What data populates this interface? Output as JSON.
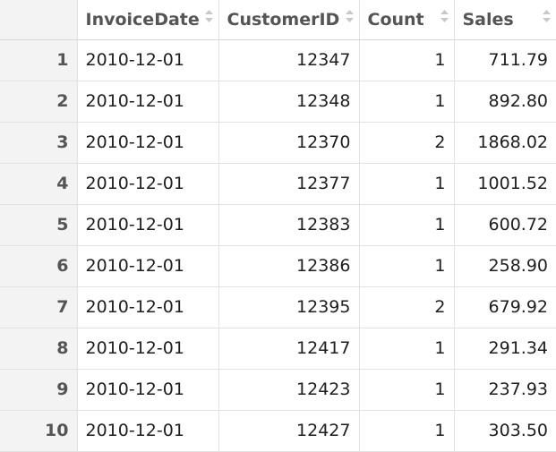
{
  "table": {
    "columns": [
      {
        "key": "index",
        "label": ""
      },
      {
        "key": "InvoiceDate",
        "label": "InvoiceDate"
      },
      {
        "key": "CustomerID",
        "label": "CustomerID"
      },
      {
        "key": "Count",
        "label": "Count"
      },
      {
        "key": "Sales",
        "label": "Sales"
      }
    ],
    "rows": [
      {
        "index": "1",
        "InvoiceDate": "2010-12-01",
        "CustomerID": "12347",
        "Count": "1",
        "Sales": "711.79"
      },
      {
        "index": "2",
        "InvoiceDate": "2010-12-01",
        "CustomerID": "12348",
        "Count": "1",
        "Sales": "892.80"
      },
      {
        "index": "3",
        "InvoiceDate": "2010-12-01",
        "CustomerID": "12370",
        "Count": "2",
        "Sales": "1868.02"
      },
      {
        "index": "4",
        "InvoiceDate": "2010-12-01",
        "CustomerID": "12377",
        "Count": "1",
        "Sales": "1001.52"
      },
      {
        "index": "5",
        "InvoiceDate": "2010-12-01",
        "CustomerID": "12383",
        "Count": "1",
        "Sales": "600.72"
      },
      {
        "index": "6",
        "InvoiceDate": "2010-12-01",
        "CustomerID": "12386",
        "Count": "1",
        "Sales": "258.90"
      },
      {
        "index": "7",
        "InvoiceDate": "2010-12-01",
        "CustomerID": "12395",
        "Count": "2",
        "Sales": "679.92"
      },
      {
        "index": "8",
        "InvoiceDate": "2010-12-01",
        "CustomerID": "12417",
        "Count": "1",
        "Sales": "291.34"
      },
      {
        "index": "9",
        "InvoiceDate": "2010-12-01",
        "CustomerID": "12423",
        "Count": "1",
        "Sales": "237.93"
      },
      {
        "index": "10",
        "InvoiceDate": "2010-12-01",
        "CustomerID": "12427",
        "Count": "1",
        "Sales": "303.50"
      }
    ]
  },
  "colors": {
    "index_column_background": "#f3f3f3",
    "grid_line": "#e2e2e2",
    "header_text": "#555555",
    "sort_icon": "#c8c8c8"
  },
  "icons": {
    "sort": "sort-arrows-icon"
  }
}
